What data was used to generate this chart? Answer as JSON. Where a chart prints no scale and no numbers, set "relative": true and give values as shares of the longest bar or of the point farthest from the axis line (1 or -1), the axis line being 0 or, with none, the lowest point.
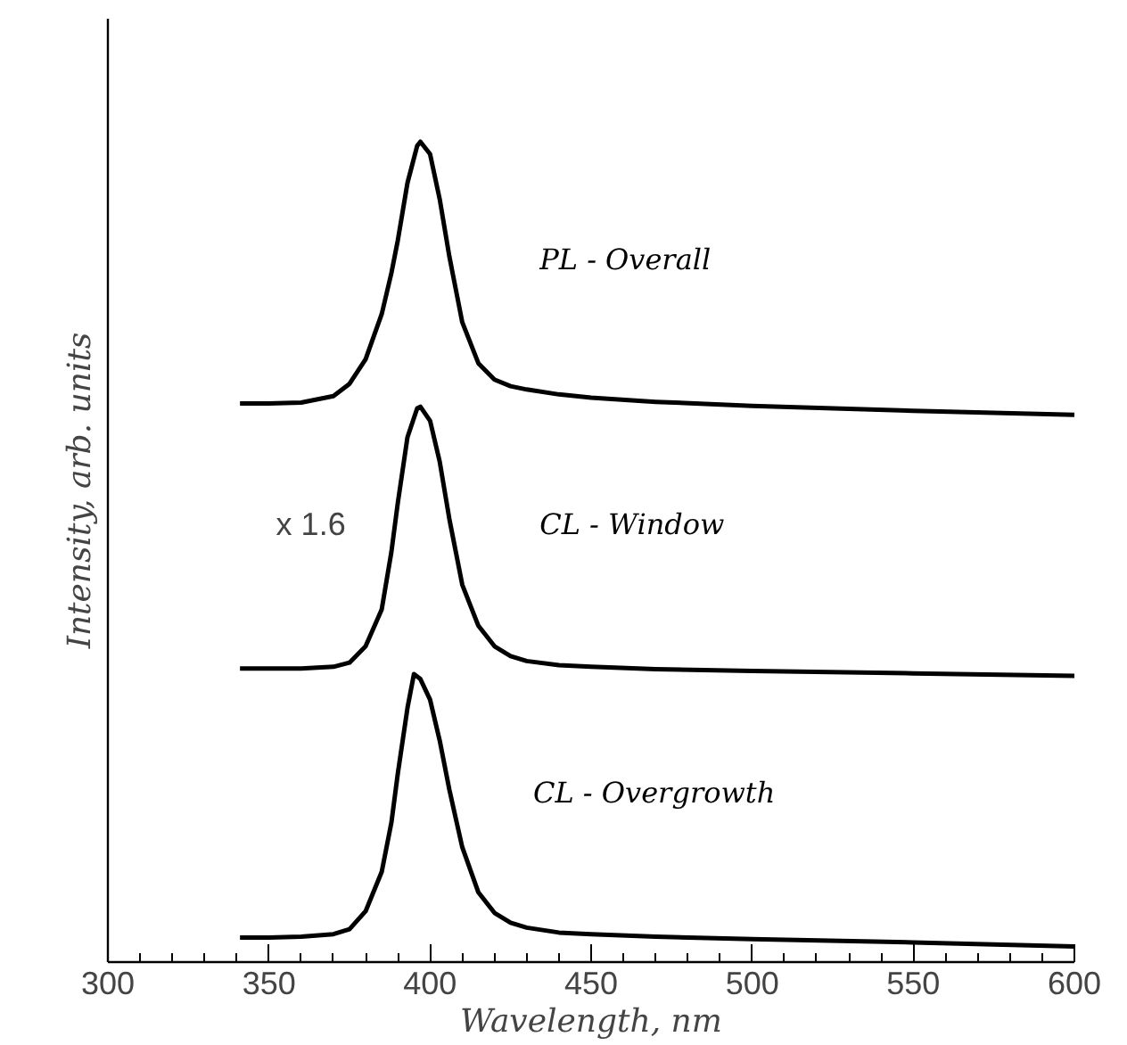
{
  "chart_data": {
    "type": "line",
    "relative": true,
    "xlabel": "Wavelength, nm",
    "ylabel": "Intensity, arb. units",
    "xlim": [
      300,
      600
    ],
    "xticks": [
      300,
      {
        "value": 310,
        "label": null
      },
      {
        "value": 320,
        "label": null
      },
      {
        "value": 330,
        "label": null
      },
      {
        "value": 340,
        "label": null
      },
      350,
      {
        "value": 360,
        "label": null
      },
      {
        "value": 370,
        "label": null
      },
      {
        "value": 380,
        "label": null
      },
      {
        "value": 390,
        "label": null
      },
      400,
      {
        "value": 410,
        "label": null
      },
      {
        "value": 420,
        "label": null
      },
      {
        "value": 430,
        "label": null
      },
      {
        "value": 440,
        "label": null
      },
      450,
      {
        "value": 460,
        "label": null
      },
      {
        "value": 470,
        "label": null
      },
      {
        "value": 480,
        "label": null
      },
      {
        "value": 490,
        "label": null
      },
      500,
      {
        "value": 510,
        "label": null
      },
      {
        "value": 520,
        "label": null
      },
      {
        "value": 530,
        "label": null
      },
      {
        "value": 540,
        "label": null
      },
      550,
      {
        "value": 560,
        "label": null
      },
      {
        "value": 570,
        "label": null
      },
      {
        "value": 580,
        "label": null
      },
      {
        "value": 590,
        "label": null
      },
      600
    ],
    "tick_labels": "x",
    "grid": false,
    "marker": "none",
    "line_style": "solid",
    "annotations": [
      "x 1.6"
    ],
    "series": [
      {
        "name": "PL - Overall",
        "color": "#000000",
        "x": [
          341,
          350,
          360,
          370,
          375,
          380,
          385,
          388,
          390,
          393,
          396,
          397,
          400,
          403,
          406,
          410,
          415,
          420,
          425,
          430,
          440,
          450,
          470,
          500,
          550,
          600
        ],
        "values": [
          0.681,
          0.681,
          0.682,
          0.69,
          0.705,
          0.735,
          0.79,
          0.84,
          0.88,
          0.95,
          0.995,
          1.0,
          0.985,
          0.93,
          0.86,
          0.78,
          0.73,
          0.71,
          0.702,
          0.698,
          0.692,
          0.688,
          0.683,
          0.678,
          0.672,
          0.667
        ]
      },
      {
        "name": "CL - Window",
        "color": "#000000",
        "x": [
          341,
          350,
          360,
          370,
          375,
          380,
          385,
          388,
          390,
          393,
          396,
          397,
          400,
          403,
          406,
          410,
          415,
          420,
          425,
          430,
          440,
          450,
          470,
          500,
          550,
          600
        ],
        "values": [
          0.358,
          0.358,
          0.358,
          0.36,
          0.365,
          0.385,
          0.43,
          0.5,
          0.56,
          0.64,
          0.675,
          0.677,
          0.66,
          0.61,
          0.54,
          0.46,
          0.41,
          0.385,
          0.373,
          0.367,
          0.362,
          0.36,
          0.357,
          0.355,
          0.352,
          0.349
        ]
      },
      {
        "name": "CL - Overgrowth",
        "color": "#000000",
        "x": [
          341,
          350,
          360,
          370,
          375,
          380,
          385,
          388,
          390,
          393,
          395,
          397,
          400,
          403,
          406,
          410,
          415,
          420,
          425,
          430,
          440,
          450,
          470,
          500,
          550,
          600
        ],
        "values": [
          0.03,
          0.03,
          0.031,
          0.034,
          0.04,
          0.062,
          0.11,
          0.17,
          0.23,
          0.31,
          0.351,
          0.345,
          0.32,
          0.27,
          0.21,
          0.14,
          0.085,
          0.06,
          0.048,
          0.042,
          0.036,
          0.034,
          0.031,
          0.028,
          0.024,
          0.019
        ]
      }
    ]
  }
}
